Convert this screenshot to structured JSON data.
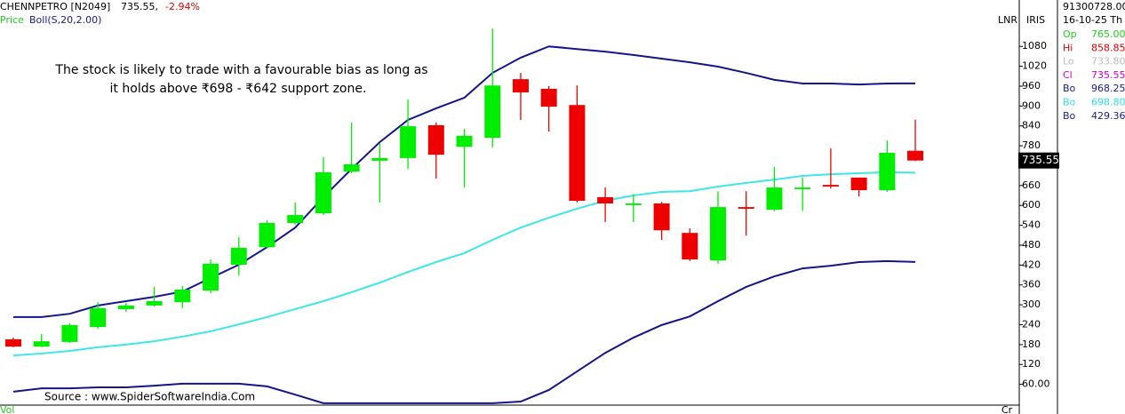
{
  "chart_data": {
    "type": "candlestick",
    "header": {
      "symbol": "CHENNPETRO [N2049]",
      "last": "735.55,",
      "change": "-2.94%",
      "price": "Price",
      "indicator": "Boll(S,20,2.00)"
    },
    "annotation": [
      "The stock is likely to trade with a favourable bias as long as",
      "it holds above ₹698 - ₹642 support zone."
    ],
    "source": "Source : www.SpiderSoftwareIndia.Com",
    "corner_labels": {
      "lnr": "LNR",
      "iris": "IRIS",
      "vol": "Vol",
      "cr": "Cr"
    },
    "info_panel": {
      "volume": "91300728.00",
      "date": "16-10-25 Th",
      "rows": [
        {
          "label": "Op",
          "value": "765.00",
          "color": "#22cc22"
        },
        {
          "label": "Hi",
          "value": "858.85",
          "color": "#dd0000"
        },
        {
          "label": "Lo",
          "value": "733.80",
          "color": "#bbbbbb"
        },
        {
          "label": "Cl",
          "value": "735.55",
          "color": "#cc00cc"
        },
        {
          "label": "Bo",
          "value": "968.25",
          "color": "#1a1a8c"
        },
        {
          "label": "Bo",
          "value": "698.80",
          "color": "#33dddd"
        },
        {
          "label": "Bo",
          "value": "429.36",
          "color": "#1a1a8c"
        }
      ]
    },
    "up_color": "#00ee00",
    "down_color": "#ee0000",
    "open": [
      196,
      174,
      188,
      233,
      287,
      298,
      308,
      343,
      421,
      474,
      547,
      576,
      702,
      735,
      743,
      842,
      777,
      804,
      981,
      952,
      903,
      625,
      601,
      606,
      517,
      434,
      595,
      587,
      649,
      662,
      684,
      646,
      765
    ],
    "high": [
      201,
      212,
      244,
      308,
      306,
      354,
      357,
      437,
      504,
      555,
      609,
      745,
      850,
      786,
      920,
      850,
      831,
      1134,
      1000,
      960,
      962,
      654,
      633,
      611,
      531,
      643,
      643,
      716,
      684,
      772,
      684,
      796,
      858.85
    ],
    "low": [
      172,
      172,
      185,
      228,
      279,
      295,
      290,
      335,
      389,
      469,
      542,
      571,
      697,
      609,
      710,
      681,
      654,
      775,
      858,
      823,
      609,
      550,
      550,
      496,
      432,
      424,
      509,
      582,
      584,
      651,
      627,
      641,
      733.8
    ],
    "close": [
      174,
      190,
      239,
      290,
      298,
      311,
      346,
      424,
      472,
      547,
      571,
      700,
      724,
      743,
      839,
      753,
      810,
      962,
      941,
      898,
      614,
      606,
      606,
      525,
      437,
      595,
      590,
      654,
      654,
      657,
      646,
      759,
      735.55
    ],
    "series": [
      {
        "name": "Upper",
        "color": "#14148c",
        "values": [
          263,
          263,
          273,
          298,
          311,
          324,
          340,
          381,
          421,
          474,
          533,
          625,
          710,
          791,
          858,
          893,
          925,
          1000,
          1046,
          1080,
          1072,
          1064,
          1054,
          1043,
          1032,
          1019,
          1000,
          979,
          968,
          968,
          965,
          968,
          968.25
        ]
      },
      {
        "name": "Middle",
        "color": "#3ee6e6",
        "values": [
          147,
          153,
          161,
          172,
          180,
          190,
          204,
          220,
          241,
          263,
          287,
          311,
          338,
          367,
          399,
          429,
          456,
          496,
          533,
          563,
          590,
          614,
          630,
          641,
          643,
          657,
          668,
          678,
          689,
          694,
          697,
          700,
          698.8
        ]
      },
      {
        "name": "Lower",
        "color": "#14148c",
        "values": [
          38,
          48,
          48,
          51,
          51,
          56,
          62,
          62,
          62,
          54,
          29,
          3,
          3,
          3,
          3,
          3,
          3,
          3,
          8,
          43,
          99,
          155,
          201,
          239,
          265,
          311,
          354,
          386,
          410,
          418,
          429,
          432,
          429.36
        ]
      }
    ],
    "ylim": [
      0,
      1220
    ],
    "yticks": [
      {
        "value": 60,
        "label": "60.00"
      },
      120,
      180,
      240,
      300,
      360,
      420,
      480,
      540,
      600,
      660,
      780,
      840,
      900,
      960,
      1020,
      1080
    ]
  }
}
